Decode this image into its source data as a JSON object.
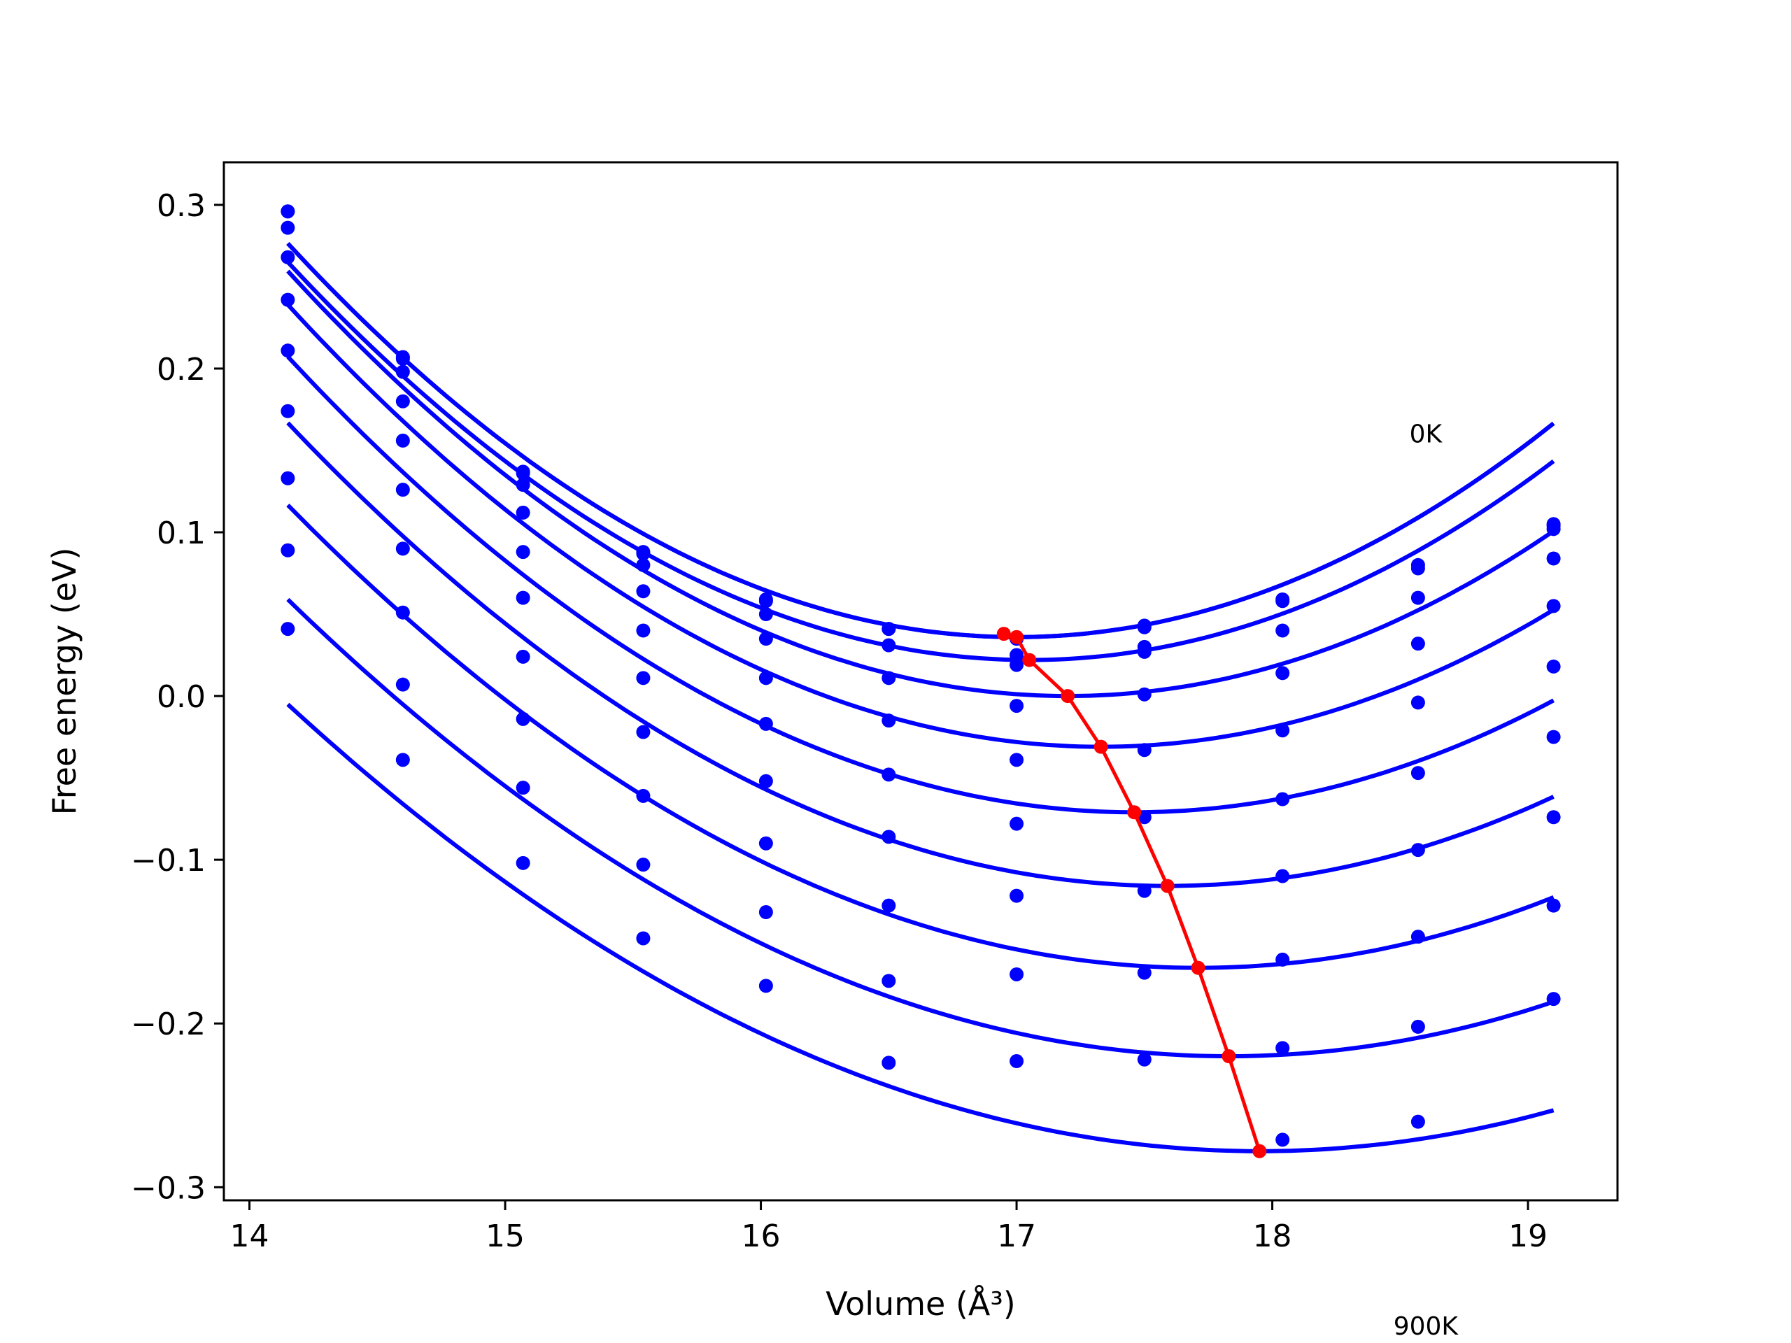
{
  "chart_data": {
    "type": "line",
    "title": "",
    "xlabel": "Volume (Å³)",
    "ylabel": "Free energy (eV)",
    "xlim": [
      13.9,
      19.35
    ],
    "ylim": [
      -0.308,
      0.326
    ],
    "xticks": [
      14,
      15,
      16,
      17,
      18,
      19
    ],
    "yticks": [
      0.3,
      0.2,
      0.1,
      0.0,
      -0.1,
      -0.2,
      -0.3
    ],
    "xtick_labels": [
      "14",
      "15",
      "16",
      "17",
      "18",
      "19"
    ],
    "ytick_labels": [
      "0.3",
      "0.2",
      "0.1",
      "0.0",
      "−0.1",
      "−0.2",
      "−0.3"
    ],
    "annotations": [
      {
        "text": "0K",
        "x": 18.6,
        "y": 0.155
      },
      {
        "text": "900K",
        "x": 18.6,
        "y": -0.39
      }
    ],
    "grid": false,
    "volumes": [
      14.15,
      14.6,
      15.07,
      15.54,
      16.02,
      16.5,
      17.0,
      17.5,
      18.04,
      18.57,
      19.1
    ],
    "series": [
      {
        "values": [
          0.296,
          0.207,
          0.137,
          0.088,
          0.059,
          0.041,
          0.035,
          0.043,
          0.059,
          0.08,
          0.105
        ]
      },
      {
        "values": [
          0.296,
          0.206,
          0.136,
          0.087,
          0.058,
          0.041,
          0.035,
          0.042,
          0.058,
          0.078,
          0.104
        ]
      },
      {
        "values": [
          0.286,
          0.198,
          0.129,
          0.08,
          0.05,
          0.031,
          0.025,
          0.03,
          0.04,
          0.06,
          0.102
        ]
      },
      {
        "values": [
          0.268,
          0.18,
          0.112,
          0.064,
          0.035,
          0.011,
          0.019,
          0.027,
          0.014,
          0.032,
          0.084
        ]
      },
      {
        "values": [
          0.242,
          0.156,
          0.088,
          0.04,
          0.011,
          -0.015,
          -0.006,
          0.001,
          -0.021,
          -0.004,
          0.055
        ]
      },
      {
        "values": [
          0.211,
          0.126,
          0.06,
          0.011,
          -0.017,
          -0.048,
          -0.039,
          -0.033,
          -0.063,
          -0.047,
          0.018
        ]
      },
      {
        "values": [
          0.174,
          0.09,
          0.024,
          -0.022,
          -0.052,
          -0.086,
          -0.078,
          -0.074,
          -0.11,
          -0.094,
          -0.025
        ]
      },
      {
        "values": [
          0.133,
          0.051,
          -0.014,
          -0.061,
          -0.09,
          -0.128,
          -0.122,
          -0.119,
          -0.161,
          -0.147,
          -0.074
        ]
      },
      {
        "values": [
          0.089,
          0.007,
          -0.056,
          -0.103,
          -0.132,
          -0.174,
          -0.17,
          -0.169,
          -0.215,
          -0.202,
          -0.128
        ]
      },
      {
        "values": [
          0.041,
          -0.039,
          -0.102,
          -0.148,
          -0.177,
          -0.224,
          -0.223,
          -0.222,
          -0.271,
          -0.26,
          -0.185
        ]
      }
    ],
    "fit_curves": [
      {
        "a": 0.0296,
        "v0": 17.0,
        "e0": 0.036
      },
      {
        "a": 0.0296,
        "v0": 17.0,
        "e0": 0.036
      },
      {
        "a": 0.0289,
        "v0": 17.05,
        "e0": 0.022
      },
      {
        "a": 0.0279,
        "v0": 17.2,
        "e0": 0.0
      },
      {
        "a": 0.0267,
        "v0": 17.33,
        "e0": -0.031
      },
      {
        "a": 0.0254,
        "v0": 17.46,
        "e0": -0.071
      },
      {
        "a": 0.0239,
        "v0": 17.59,
        "e0": -0.116
      },
      {
        "a": 0.0223,
        "v0": 17.71,
        "e0": -0.166
      },
      {
        "a": 0.0206,
        "v0": 17.83,
        "e0": -0.22
      },
      {
        "a": 0.0189,
        "v0": 17.95,
        "e0": -0.278
      }
    ],
    "minima_line": {
      "x": [
        16.95,
        17.0,
        17.05,
        17.2,
        17.33,
        17.46,
        17.59,
        17.71,
        17.83,
        17.95
      ],
      "y": [
        0.038,
        0.036,
        0.022,
        0.0,
        -0.031,
        -0.071,
        -0.116,
        -0.166,
        -0.22,
        -0.278
      ]
    },
    "colors": {
      "points": "#0000ff",
      "fits": "#0000ff",
      "minima": "#ff0000",
      "axes": "#000000"
    }
  }
}
